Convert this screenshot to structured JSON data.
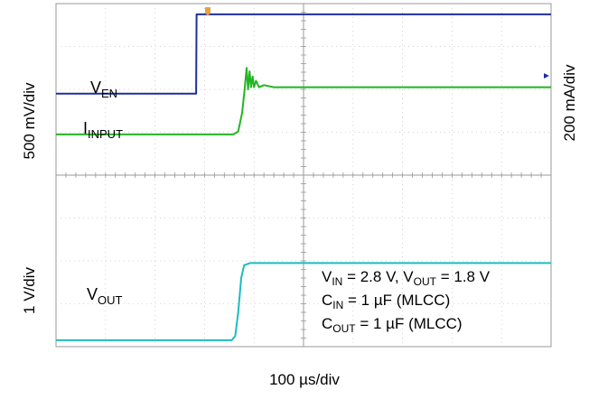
{
  "chart_data": {
    "type": "line",
    "title": "",
    "xlabel": "100 µs/div",
    "ylabel_left_top": "500 mV/div",
    "ylabel_right_top": "200 mA/div",
    "ylabel_left_bottom": "1 V/div",
    "grid": true,
    "x_divisions": 10,
    "y_divisions": 8,
    "x_unit": "µs",
    "x_per_div": 100,
    "xlim": [
      0,
      1000
    ],
    "series": [
      {
        "name": "V_EN",
        "label_main": "V",
        "label_sub": "EN",
        "color": "#1f2f9e",
        "points": [
          [
            0,
            1.9
          ],
          [
            283,
            1.9
          ],
          [
            284,
            3.75
          ],
          [
            1000,
            3.75
          ]
        ]
      },
      {
        "name": "I_INPUT",
        "label_main": "I",
        "label_sub": "INPUT",
        "color": "#22b522",
        "points": [
          [
            0,
            0.95
          ],
          [
            358,
            0.95
          ],
          [
            368,
            1.02
          ],
          [
            376,
            1.45
          ],
          [
            381,
            2.0
          ],
          [
            385,
            2.5
          ],
          [
            388,
            2.0
          ],
          [
            391,
            2.42
          ],
          [
            394,
            2.05
          ],
          [
            397,
            2.3
          ],
          [
            400,
            2.05
          ],
          [
            404,
            2.2
          ],
          [
            410,
            2.05
          ],
          [
            420,
            2.1
          ],
          [
            440,
            2.05
          ],
          [
            500,
            2.05
          ],
          [
            1000,
            2.05
          ]
        ]
      },
      {
        "name": "V_OUT",
        "label_main": "V",
        "label_sub": "OUT",
        "color": "#1cbcc0",
        "points": [
          [
            0,
            -3.85
          ],
          [
            355,
            -3.85
          ],
          [
            362,
            -3.75
          ],
          [
            368,
            -3.2
          ],
          [
            374,
            -2.4
          ],
          [
            380,
            -2.1
          ],
          [
            392,
            -2.05
          ],
          [
            1000,
            -2.05
          ]
        ]
      }
    ],
    "annotations": [
      {
        "name": "conditions-line-1",
        "parts": [
          [
            "V",
            "IN"
          ],
          [
            " = 2.8 V, V",
            "OUT"
          ],
          [
            " = 1.8 V",
            ""
          ]
        ]
      },
      {
        "name": "conditions-line-2",
        "parts": [
          [
            "C",
            "IN"
          ],
          [
            " = 1 µF (MLCC)",
            ""
          ]
        ]
      },
      {
        "name": "conditions-line-3",
        "parts": [
          [
            "C",
            "OUT"
          ],
          [
            " = 1 µF (MLCC)",
            ""
          ]
        ]
      }
    ]
  }
}
